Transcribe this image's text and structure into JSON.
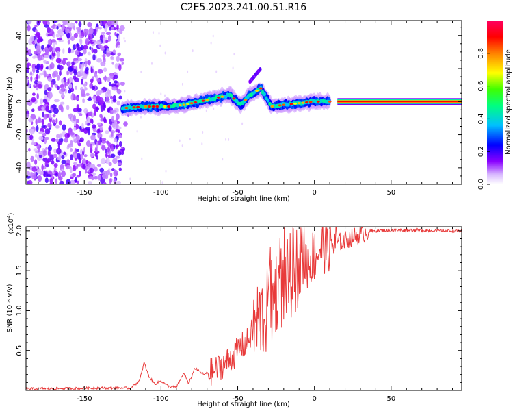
{
  "title": "C2E5.2023.241.00.51.R16",
  "chart_data": [
    {
      "type": "heatmap",
      "xlabel": "Height of straight line (km)",
      "ylabel": "Frequency (Hz)",
      "xlim": [
        -188,
        96
      ],
      "ylim": [
        -50,
        49
      ],
      "xticks": [
        -150,
        -100,
        -50,
        0,
        50
      ],
      "yticks": [
        -40,
        -20,
        0,
        20,
        40
      ],
      "grid": false,
      "colorbar": {
        "label": "Normalized spectral amplitude",
        "range": [
          0,
          1
        ],
        "ticks": [
          "0.0",
          "0.2",
          "0.4",
          "0.6",
          "0.8"
        ],
        "colors": [
          "#ffffff",
          "#d8b8ff",
          "#8a00ff",
          "#0000ff",
          "#00c0ff",
          "#00ff80",
          "#40ff00",
          "#ffff00",
          "#ff8000",
          "#ff0000",
          "#ff0060"
        ]
      },
      "features": {
        "noise_region_x": [
          -188,
          -126
        ],
        "carrier_line": {
          "x": [
            15,
            96
          ],
          "frequency": 0,
          "amplitude": 0.9
        },
        "ridge": [
          {
            "x": -125,
            "y": -4
          },
          {
            "x": -110,
            "y": -3
          },
          {
            "x": -95,
            "y": -3
          },
          {
            "x": -85,
            "y": -2
          },
          {
            "x": -75,
            "y": 0
          },
          {
            "x": -65,
            "y": 2
          },
          {
            "x": -55,
            "y": 4
          },
          {
            "x": -48,
            "y": -2
          },
          {
            "x": -42,
            "y": 4
          },
          {
            "x": -35,
            "y": 8
          },
          {
            "x": -28,
            "y": -3
          },
          {
            "x": -20,
            "y": -2
          },
          {
            "x": -10,
            "y": -1
          },
          {
            "x": 0,
            "y": 0
          },
          {
            "x": 10,
            "y": 0
          }
        ],
        "side_streak": [
          {
            "x": -42,
            "y": 12
          },
          {
            "x": -35,
            "y": 20
          }
        ]
      }
    },
    {
      "type": "line",
      "xlabel": "Height of straight line (km)",
      "ylabel": "SNR (10 * v/v)",
      "yscale_label": "(x10",
      "yscale_exp": "4",
      "xlim": [
        -188,
        96
      ],
      "ylim": [
        0,
        2.05
      ],
      "xticks": [
        -150,
        -100,
        -50,
        0,
        50
      ],
      "yticks": [
        "0.5",
        "1.0",
        "1.5",
        "2.0"
      ],
      "grid": false,
      "color": "#e83a3a",
      "x": [
        -188,
        -140,
        -120,
        -114,
        -111,
        -108,
        -104,
        -100,
        -95,
        -90,
        -85,
        -82,
        -78,
        -72,
        -65,
        -58,
        -52,
        -48,
        -44,
        -40,
        -36,
        -32,
        -28,
        -24,
        -20,
        -15,
        -10,
        -5,
        0,
        5,
        10,
        15,
        20,
        25,
        30,
        35,
        40,
        60,
        80,
        96
      ],
      "y": [
        0.02,
        0.03,
        0.03,
        0.12,
        0.35,
        0.18,
        0.08,
        0.12,
        0.05,
        0.04,
        0.22,
        0.08,
        0.28,
        0.2,
        0.25,
        0.35,
        0.45,
        0.55,
        0.6,
        0.75,
        0.9,
        0.95,
        1.1,
        1.3,
        1.3,
        1.45,
        1.55,
        1.6,
        1.7,
        1.8,
        1.82,
        1.85,
        1.88,
        1.92,
        1.96,
        1.99,
        2.0,
        2.01,
        2.0,
        2.0
      ]
    }
  ]
}
